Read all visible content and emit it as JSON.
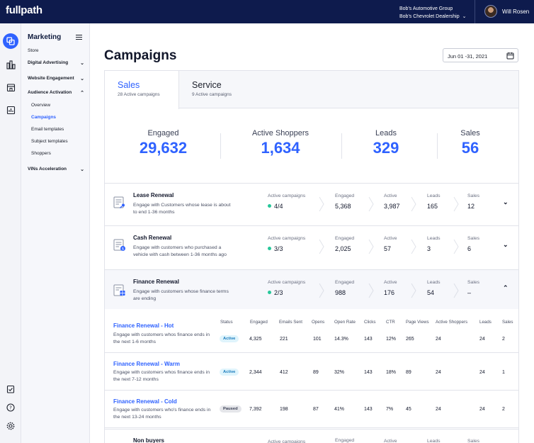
{
  "topbar": {
    "logo": "fullpath",
    "group": "Bob's Automotive Group",
    "dealership": "Bob's Chevrolet Dealership",
    "user": "Will Rosen"
  },
  "rail_icons": [
    "overlapping-squares-icon",
    "bar-chart-icon",
    "store-icon",
    "report-icon",
    "checklist-icon",
    "help-icon",
    "settings-icon"
  ],
  "sidebar": {
    "title": "Marketing",
    "items": [
      {
        "label": "Store"
      },
      {
        "label": "Digital Advertising"
      },
      {
        "label": "Website Engagement"
      },
      {
        "label": "Audience Activation"
      },
      {
        "label": "VINs Acceleration"
      }
    ],
    "sub_items": [
      {
        "label": "Overview"
      },
      {
        "label": "Campaigns"
      },
      {
        "label": "Email templates"
      },
      {
        "label": "Subject templates"
      },
      {
        "label": "Shoppers"
      }
    ]
  },
  "page": {
    "title": "Campaigns",
    "date_range": "Jun 01 -31, 2021"
  },
  "tabs": [
    {
      "name": "Sales",
      "sub": "28 Active campaigns"
    },
    {
      "name": "Service",
      "sub": "9 Active campaigns"
    }
  ],
  "kpis": [
    {
      "label": "Engaged",
      "value": "29,632"
    },
    {
      "label": "Active Shoppers",
      "value": "1,634"
    },
    {
      "label": "Leads",
      "value": "329"
    },
    {
      "label": "Sales",
      "value": "56"
    }
  ],
  "stat_labels": {
    "active_campaigns": "Active campaigns",
    "engaged": "Engaged",
    "active": "Active",
    "leads": "Leads",
    "sales": "Sales"
  },
  "rows": [
    {
      "name": "Lease Renewal",
      "desc": "Engage with Customers whose lease is about to end 1-36 months",
      "active_campaigns": "4/4",
      "engaged": "5,368",
      "active": "3,987",
      "leads": "165",
      "sales": "12",
      "chevron": "⌄"
    },
    {
      "name": "Cash Renewal",
      "desc": "Engage with customers who purchased a vehicle with cash between 1-36 months ago",
      "active_campaigns": "3/3",
      "engaged": "2,025",
      "active": "57",
      "leads": "3",
      "sales": "6",
      "chevron": "⌄"
    },
    {
      "name": "Finance Renewal",
      "desc": "Engage with customers whose finance terms are ending",
      "active_campaigns": "2/3",
      "engaged": "988",
      "active": "176",
      "leads": "54",
      "sales": "–",
      "chevron": "⌃"
    },
    {
      "name": "Non buyers",
      "desc": "",
      "active_campaigns": "",
      "engaged": "",
      "active": "",
      "leads": "",
      "sales": "",
      "chevron": ""
    }
  ],
  "detail_headers": [
    "Status",
    "Engaged",
    "Emails Sent",
    "Opens",
    "Open Rate",
    "Clicks",
    "CTR",
    "Page Views",
    "Active Shoppers",
    "Leads",
    "Sales"
  ],
  "detail_rows": [
    {
      "name": "Finance Renewal - Hot",
      "desc": "Engage with customers whos finance ends in the next 1-6 months",
      "status": "Active",
      "engaged": "4,325",
      "emails_sent": "221",
      "opens": "101",
      "open_rate": "14.3%",
      "clicks": "143",
      "ctr": "12%",
      "page_views": "265",
      "active_shoppers": "24",
      "leads": "24",
      "sales": "2"
    },
    {
      "name": "Finance Renewal - Warm",
      "desc": "Engage with customers whos finance ends in the next 7-12 months",
      "status": "Active",
      "engaged": "2,344",
      "emails_sent": "412",
      "opens": "89",
      "open_rate": "32%",
      "clicks": "143",
      "ctr": "18%",
      "page_views": "89",
      "active_shoppers": "24",
      "leads": "24",
      "sales": "1"
    },
    {
      "name": "Finance Renewal - Cold",
      "desc": "Engage with customers who's finance ends in the next 13-24 months",
      "status": "Paused",
      "engaged": "7,392",
      "emails_sent": "198",
      "opens": "87",
      "open_rate": "41%",
      "clicks": "143",
      "ctr": "7%",
      "page_views": "45",
      "active_shoppers": "24",
      "leads": "24",
      "sales": "2"
    }
  ],
  "colors": {
    "navy": "#0e1b4d",
    "accent": "#2f62ff",
    "status_green": "#27c79a"
  }
}
